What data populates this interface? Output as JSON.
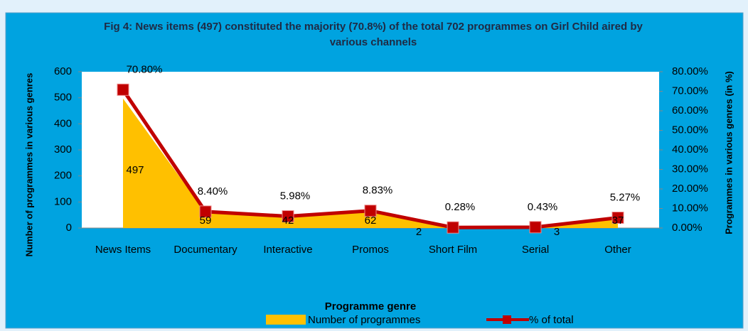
{
  "chart_data": {
    "type": "area-line",
    "title": "Fig 4: News items (497) constituted the majority (70.8%) of the total 702 programmes on Girl Child aired by various channels",
    "x_label": "Programme genre",
    "y_label": "Number of programmes in various genres",
    "y2_label": "Programmes in various genres (in %)",
    "categories": [
      "News Items",
      "Documentary",
      "Interactive",
      "Promos",
      "Short Film",
      "Serial",
      "Other"
    ],
    "series": [
      {
        "name": "Number of programmes",
        "color": "#ffc000",
        "values": [
          497,
          59,
          42,
          62,
          2,
          3,
          37
        ]
      },
      {
        "name": "% of total",
        "color": "#c00000",
        "axis": "y2",
        "values": [
          70.8,
          8.4,
          5.98,
          8.83,
          0.28,
          0.43,
          5.27
        ],
        "value_labels": [
          "70.80%",
          "8.40%",
          "5.98%",
          "8.83%",
          "0.28%",
          "0.43%",
          "5.27%"
        ]
      }
    ],
    "ylim": [
      0,
      600
    ],
    "yticks": [
      0,
      100,
      200,
      300,
      400,
      500,
      600
    ],
    "y2lim": [
      0,
      80
    ],
    "y2ticks": [
      {
        "value": 0,
        "label": "0.00%"
      },
      {
        "value": 10,
        "label": "10.00%"
      },
      {
        "value": 20,
        "label": "20.00%"
      },
      {
        "value": 30,
        "label": "30.00%"
      },
      {
        "value": 40,
        "label": "40.00%"
      },
      {
        "value": 50,
        "label": "50.00%"
      },
      {
        "value": 60,
        "label": "60.00%"
      },
      {
        "value": 70,
        "label": "70.00%"
      },
      {
        "value": 80,
        "label": "80.00%"
      }
    ],
    "legend": "bottom"
  }
}
